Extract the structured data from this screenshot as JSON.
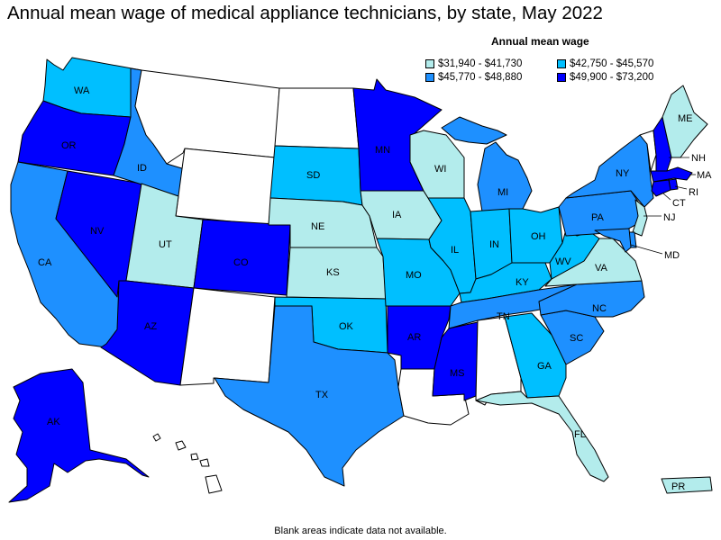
{
  "title": "Annual mean wage of medical appliance technicians, by state, May 2022",
  "legend": {
    "title": "Annual mean wage",
    "items": [
      {
        "range": "$31,940 - $41,730",
        "color": "#b3ecec"
      },
      {
        "range": "$42,750 - $45,570",
        "color": "#00bfff"
      },
      {
        "range": "$45,770 - $48,880",
        "color": "#1e90ff"
      },
      {
        "range": "$49,900 - $73,200",
        "color": "#0000ff"
      }
    ]
  },
  "no_data_color": "#ffffff",
  "states": {
    "WA": "$42,750 - $45,570",
    "OR": "$49,900 - $73,200",
    "CA": "$45,770 - $48,880",
    "NV": "$49,900 - $73,200",
    "ID": "$45,770 - $48,880",
    "MT": null,
    "WY": null,
    "UT": "$31,940 - $41,730",
    "AZ": "$49,900 - $73,200",
    "CO": "$49,900 - $73,200",
    "NM": null,
    "ND": null,
    "SD": "$42,750 - $45,570",
    "NE": "$31,940 - $41,730",
    "KS": "$31,940 - $41,730",
    "OK": "$42,750 - $45,570",
    "TX": "$45,770 - $48,880",
    "MN": "$49,900 - $73,200",
    "IA": "$31,940 - $41,730",
    "MO": "$42,750 - $45,570",
    "AR": "$49,900 - $73,200",
    "LA": null,
    "WI": "$31,940 - $41,730",
    "IL": "$42,750 - $45,570",
    "MS": "$49,900 - $73,200",
    "MI": "$45,770 - $48,880",
    "IN": "$42,750 - $45,570",
    "KY": "$42,750 - $45,570",
    "TN": "$45,770 - $48,880",
    "AL": null,
    "OH": "$42,750 - $45,570",
    "WV": "$42,750 - $45,570",
    "VA": "$31,940 - $41,730",
    "NC": "$45,770 - $48,880",
    "SC": "$45,770 - $48,880",
    "GA": "$42,750 - $45,570",
    "FL": "$31,940 - $41,730",
    "PA": "$45,770 - $48,880",
    "NY": "$45,770 - $48,880",
    "VT": null,
    "NH": "$49,900 - $73,200",
    "ME": "$31,940 - $41,730",
    "MA": "$49,900 - $73,200",
    "RI": "$49,900 - $73,200",
    "CT": "$49,900 - $73,200",
    "NJ": "$31,940 - $41,730",
    "DE": "$45,770 - $48,880",
    "MD": "$45,770 - $48,880",
    "AK": "$49,900 - $73,200",
    "HI": null,
    "PR": "$31,940 - $41,730"
  },
  "footnote": "Blank areas indicate data not available."
}
